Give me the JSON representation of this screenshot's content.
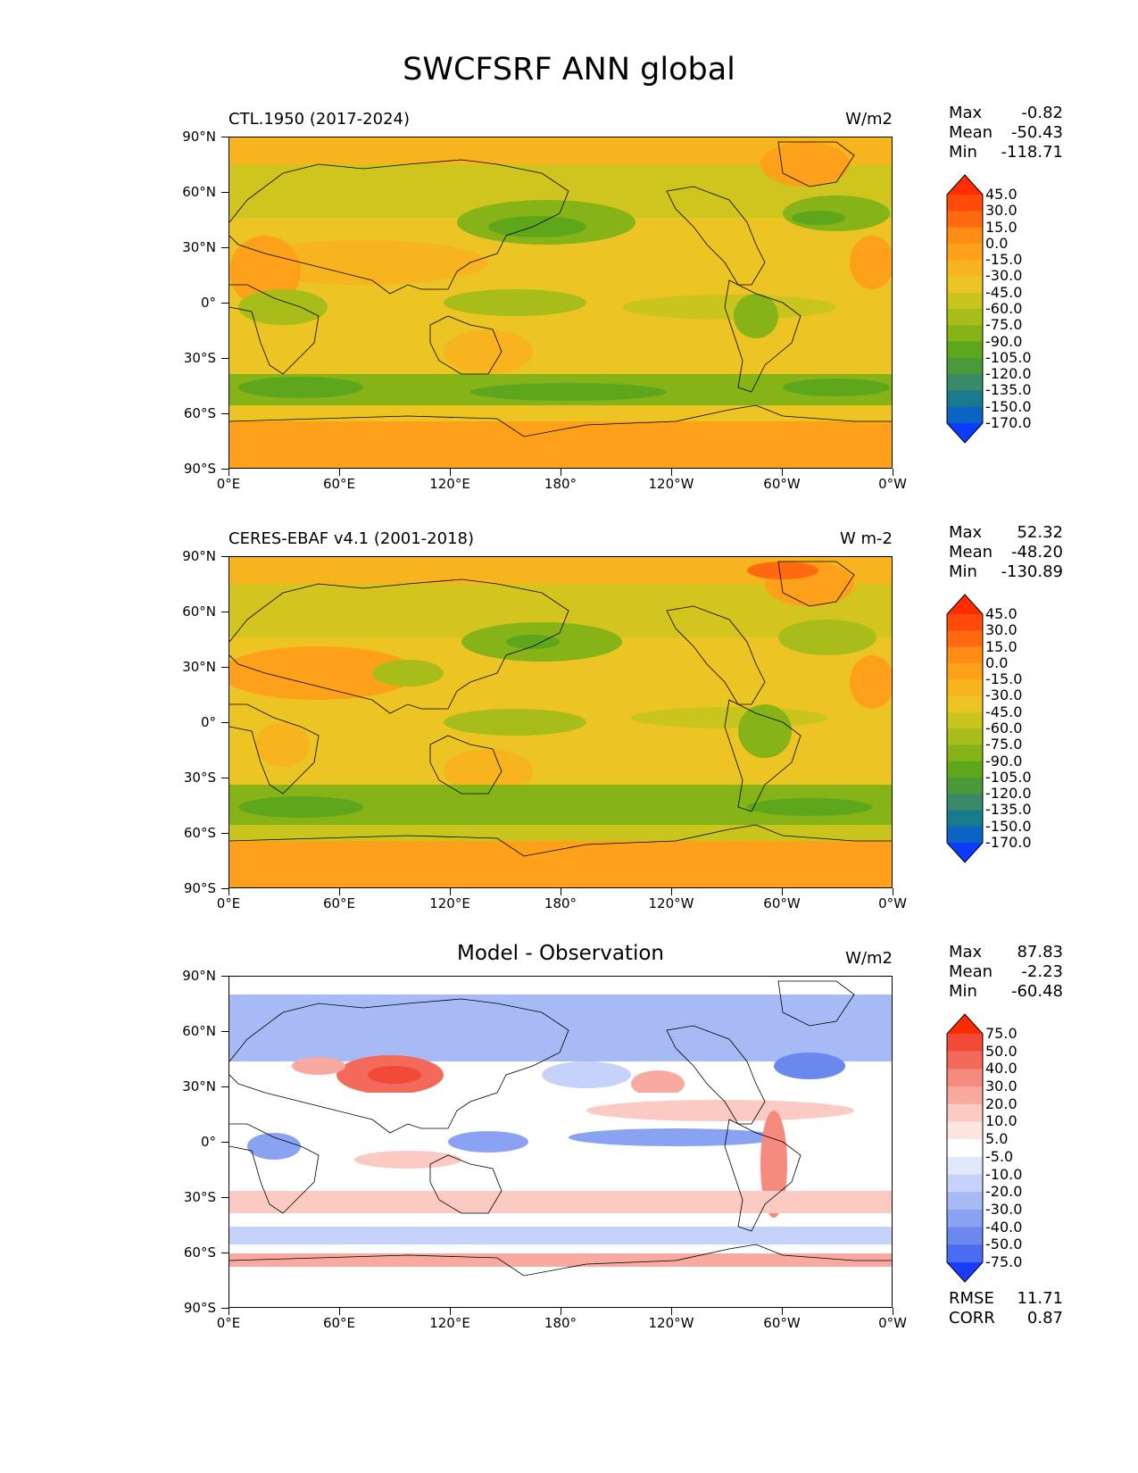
{
  "title": "SWCFSRF ANN global",
  "axes": {
    "y_ticks": [
      "90°N",
      "60°N",
      "30°N",
      "0°",
      "30°S",
      "60°S",
      "90°S"
    ],
    "x_ticks": [
      "0°E",
      "60°E",
      "120°E",
      "180°",
      "120°W",
      "60°W",
      "0°W"
    ]
  },
  "panels": [
    {
      "title": "CTL.1950 (2017-2024)",
      "units": "W/m2",
      "stats": {
        "max_label": "Max",
        "max": "-0.82",
        "mean_label": "Mean",
        "mean": "-50.43",
        "min_label": "Min",
        "min": "-118.71"
      },
      "colorbar_levels": [
        "45.0",
        "30.0",
        "15.0",
        "0.0",
        "-15.0",
        "-30.0",
        "-45.0",
        "-60.0",
        "-75.0",
        "-90.0",
        "-105.0",
        "-120.0",
        "-135.0",
        "-150.0",
        "-170.0"
      ],
      "colorbar_colors": [
        "#ff2d00",
        "#ff4a0a",
        "#ff6a10",
        "#ff8c14",
        "#fda11a",
        "#f8b41e",
        "#ecc424",
        "#c9c41e",
        "#a8bc1a",
        "#86b318",
        "#5ea71c",
        "#4a9a3a",
        "#3a8a6a",
        "#187a8c",
        "#0b64c2",
        "#0a3cff"
      ]
    },
    {
      "title": "CERES-EBAF v4.1 (2001-2018)",
      "units": "W m-2",
      "stats": {
        "max_label": "Max",
        "max": "52.32",
        "mean_label": "Mean",
        "mean": "-48.20",
        "min_label": "Min",
        "min": "-130.89"
      },
      "colorbar_levels": [
        "45.0",
        "30.0",
        "15.0",
        "0.0",
        "-15.0",
        "-30.0",
        "-45.0",
        "-60.0",
        "-75.0",
        "-90.0",
        "-105.0",
        "-120.0",
        "-135.0",
        "-150.0",
        "-170.0"
      ],
      "colorbar_colors": [
        "#ff2d00",
        "#ff4a0a",
        "#ff6a10",
        "#ff8c14",
        "#fda11a",
        "#f8b41e",
        "#ecc424",
        "#c9c41e",
        "#a8bc1a",
        "#86b318",
        "#5ea71c",
        "#4a9a3a",
        "#3a8a6a",
        "#187a8c",
        "#0b64c2",
        "#0a3cff"
      ]
    },
    {
      "title": "Model - Observation",
      "units": "W/m2",
      "stats": {
        "max_label": "Max",
        "max": "87.83",
        "mean_label": "Mean",
        "mean": "-2.23",
        "min_label": "Min",
        "min": "-60.48"
      },
      "colorbar_levels": [
        "75.0",
        "50.0",
        "40.0",
        "30.0",
        "20.0",
        "10.0",
        "5.0",
        "-5.0",
        "-10.0",
        "-20.0",
        "-30.0",
        "-40.0",
        "-50.0",
        "-75.0"
      ],
      "colorbar_colors": [
        "#ff2a00",
        "#f24a38",
        "#f46a5a",
        "#f78a7e",
        "#f9aaa0",
        "#fbcac2",
        "#fde6e2",
        "#ffffff",
        "#e2e8fc",
        "#c6d2fa",
        "#a8baf6",
        "#8aa2f2",
        "#6a88ee",
        "#4a6cf2",
        "#1a3cff"
      ],
      "extra": {
        "rmse_label": "RMSE",
        "rmse": "11.71",
        "corr_label": "CORR",
        "corr": "0.87"
      }
    }
  ],
  "chart_data": [
    {
      "type": "heatmap",
      "title": "CTL.1950 (2017-2024)",
      "units": "W/m2",
      "projection": "cylindrical equidistant, lon 0°E to 360°, lat 90°S to 90°N",
      "summary": {
        "max": -0.82,
        "mean": -50.43,
        "min": -118.71
      },
      "levels": [
        -170,
        -150,
        -135,
        -120,
        -105,
        -90,
        -75,
        -60,
        -45,
        -30,
        -15,
        0,
        15,
        30,
        45
      ]
    },
    {
      "type": "heatmap",
      "title": "CERES-EBAF v4.1 (2001-2018)",
      "units": "W m-2",
      "projection": "cylindrical equidistant, lon 0°E to 360°, lat 90°S to 90°N",
      "summary": {
        "max": 52.32,
        "mean": -48.2,
        "min": -130.89
      },
      "levels": [
        -170,
        -150,
        -135,
        -120,
        -105,
        -90,
        -75,
        -60,
        -45,
        -30,
        -15,
        0,
        15,
        30,
        45
      ]
    },
    {
      "type": "heatmap",
      "title": "Model - Observation",
      "units": "W/m2",
      "projection": "cylindrical equidistant, lon 0°E to 360°, lat 90°S to 90°N",
      "summary": {
        "max": 87.83,
        "mean": -2.23,
        "min": -60.48,
        "rmse": 11.71,
        "corr": 0.87
      },
      "levels": [
        -75,
        -50,
        -40,
        -30,
        -20,
        -10,
        -5,
        5,
        10,
        20,
        30,
        40,
        50,
        75
      ]
    }
  ]
}
